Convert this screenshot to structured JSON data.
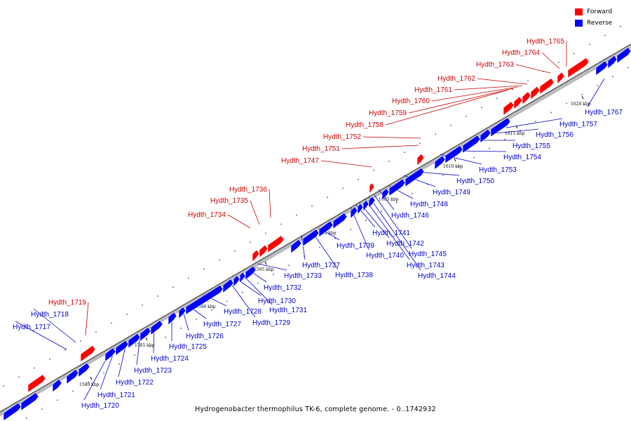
{
  "colors": {
    "forward": "#ff0000",
    "reverse": "#0000ff",
    "axis": "#888888",
    "label_fwd": "#cc0000",
    "label_rev": "#0000cc"
  },
  "legend": [
    {
      "label": "Forward",
      "color": "#ff0000"
    },
    {
      "label": "Reverse",
      "color": "#0000ff"
    }
  ],
  "caption": "Hydrogenobacter thermophilus TK-6, complete genome. - 0..1742932",
  "scale_ticks": [
    "1580 kbp",
    "1585 kbp",
    "1590 kbp",
    "1595 kbp",
    "1600 kbp",
    "1605 kbp",
    "1610 kbp",
    "1615 kbp",
    "1620 kbp"
  ],
  "forward_genes": [
    "Hydth_1719",
    "Hydth_1734",
    "Hydth_1735",
    "Hydth_1736",
    "Hydth_1747",
    "Hydth_1751",
    "Hydth_1752",
    "Hydth_1758",
    "Hydth_1759",
    "Hydth_1760",
    "Hydth_1761",
    "Hydth_1762",
    "Hydth_1763",
    "Hydth_1764",
    "Hydth_1765"
  ],
  "reverse_genes": [
    "Hydth_1717",
    "Hydth_1718",
    "Hydth_1720",
    "Hydth_1721",
    "Hydth_1722",
    "Hydth_1723",
    "Hydth_1724",
    "Hydth_1725",
    "Hydth_1726",
    "Hydth_1727",
    "Hydth_1728",
    "Hydth_1729",
    "Hydth_1730",
    "Hydth_1731",
    "Hydth_1732",
    "Hydth_1733",
    "Hydth_1737",
    "Hydth_1738",
    "Hydth_1739",
    "Hydth_1740",
    "Hydth_1741",
    "Hydth_1742",
    "Hydth_1743",
    "Hydth_1744",
    "Hydth_1745",
    "Hydth_1746",
    "Hydth_1748",
    "Hydth_1749",
    "Hydth_1750",
    "Hydth_1753",
    "Hydth_1754",
    "Hydth_1755",
    "Hydth_1756",
    "Hydth_1757",
    "Hydth_1767"
  ]
}
